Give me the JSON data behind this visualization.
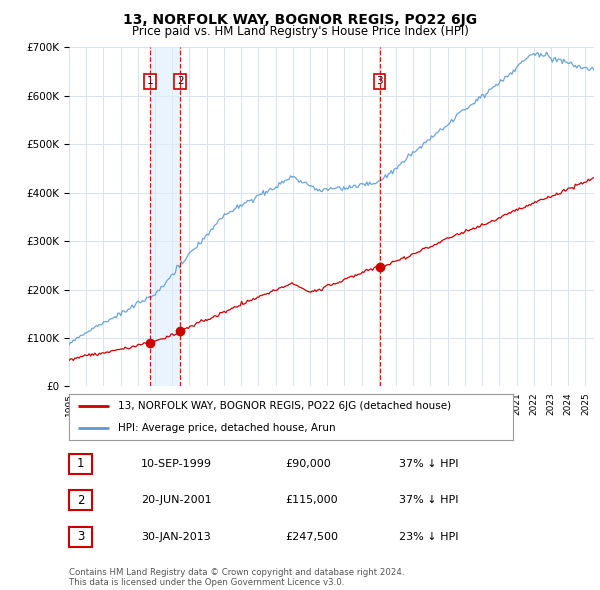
{
  "title": "13, NORFOLK WAY, BOGNOR REGIS, PO22 6JG",
  "subtitle": "Price paid vs. HM Land Registry's House Price Index (HPI)",
  "background_color": "#ffffff",
  "plot_background": "#ffffff",
  "grid_color": "#d8e4f0",
  "hpi_color": "#5b9bd5",
  "hpi_fill_color": "#ddeeff",
  "price_color": "#cc0000",
  "dashed_color": "#cc0000",
  "shade_color": "#ddeeff",
  "transaction_prices": [
    90000,
    115000,
    247500
  ],
  "transaction_labels": [
    "1",
    "2",
    "3"
  ],
  "transaction_info": [
    [
      "1",
      "10-SEP-1999",
      "£90,000",
      "37% ↓ HPI"
    ],
    [
      "2",
      "20-JUN-2001",
      "£115,000",
      "37% ↓ HPI"
    ],
    [
      "3",
      "30-JAN-2013",
      "£247,500",
      "23% ↓ HPI"
    ]
  ],
  "legend_property": "13, NORFOLK WAY, BOGNOR REGIS, PO22 6JG (detached house)",
  "legend_hpi": "HPI: Average price, detached house, Arun",
  "footer": "Contains HM Land Registry data © Crown copyright and database right 2024.\nThis data is licensed under the Open Government Licence v3.0.",
  "ylim": [
    0,
    700000
  ],
  "yticks": [
    0,
    100000,
    200000,
    300000,
    400000,
    500000,
    600000,
    700000
  ],
  "year_start": 1995,
  "year_end": 2025
}
